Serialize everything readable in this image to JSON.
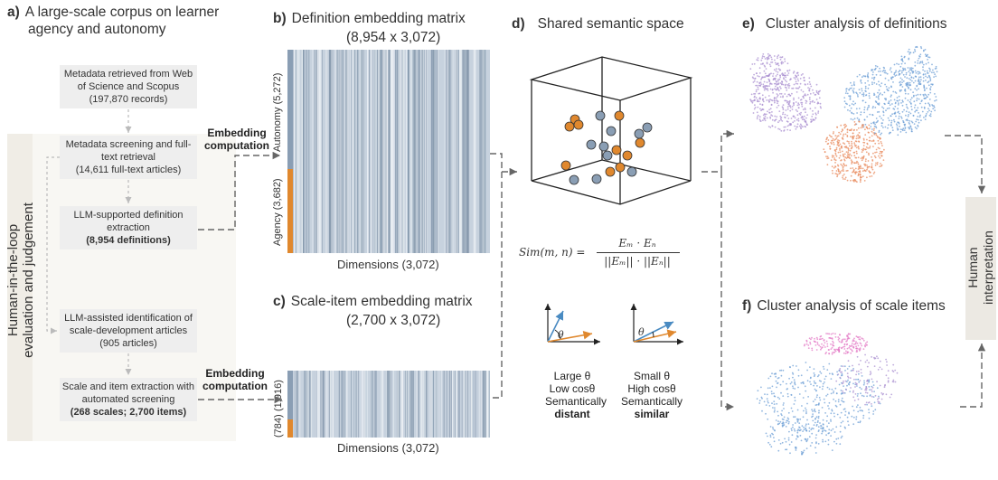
{
  "panel_a": {
    "letter": "a)",
    "title_line1": "A large-scale corpus on learner",
    "title_line2": "agency and autonomy",
    "boxes": [
      {
        "lines": [
          "Metadata retrieved from Web",
          "of Science and Scopus",
          "(197,870 records)"
        ],
        "bold": []
      },
      {
        "lines": [
          "Metadata screening and full-",
          "text retrieval",
          "(14,611 full-text articles)"
        ],
        "bold": []
      },
      {
        "lines": [
          "LLM-supported definition",
          "extraction",
          "(8,954 definitions)"
        ],
        "bold": [
          2
        ]
      },
      {
        "lines": [
          "LLM-assisted identification of",
          "scale-development articles",
          "(905 articles)"
        ],
        "bold": []
      },
      {
        "lines": [
          "Scale and item extraction with",
          "automated screening",
          "(268 scales; 2,700 items)"
        ],
        "bold": [
          2
        ]
      }
    ],
    "side_label_line1": "Human-in-the-loop",
    "side_label_line2": "evaluation and judgement"
  },
  "embedding_label": {
    "line1": "Embedding",
    "line2": "computation"
  },
  "panel_b": {
    "letter": "b)",
    "title": "Definition embedding matrix",
    "subtitle": "(8,954 x 3,072)",
    "row_label_top": "Autonomy (5,272)",
    "row_label_bottom": "Agency (3,682)",
    "xlabel": "Dimensions (3,072)"
  },
  "panel_c": {
    "letter": "c)",
    "title": "Scale-item embedding matrix",
    "subtitle": "(2,700 x 3,072)",
    "row_label_top": "(1,916)",
    "row_label_bottom": "(784)",
    "xlabel": "Dimensions (3,072)"
  },
  "panel_d": {
    "letter": "d)",
    "title": "Shared semantic space",
    "formula_lhs": "Sim(m, n) =",
    "formula_num": "Eₘ · Eₙ",
    "formula_den": "||Eₘ|| · ||Eₙ||",
    "theta": "θ",
    "left_caption": [
      "Large θ",
      "Low cosθ",
      "Semantically",
      "distant"
    ],
    "right_caption": [
      "Small θ",
      "High cosθ",
      "Semantically",
      "similar"
    ]
  },
  "panel_e": {
    "letter": "e)",
    "title": "Cluster analysis of definitions"
  },
  "panel_f": {
    "letter": "f)",
    "title": "Cluster analysis of scale items"
  },
  "human_box": {
    "line1": "Human",
    "line2": "interpretation"
  },
  "colors": {
    "autonomy": "#8a9eb4",
    "agency": "#e0882e",
    "matrix_bg": "#c7d2de",
    "box_gray": "#eeeeee",
    "side_panel": "#ece9e3",
    "cluster_blue": "#6e9fd6",
    "cluster_purple": "#a98fd0",
    "cluster_orange": "#e8895c",
    "cluster_pink": "#e377c4"
  }
}
